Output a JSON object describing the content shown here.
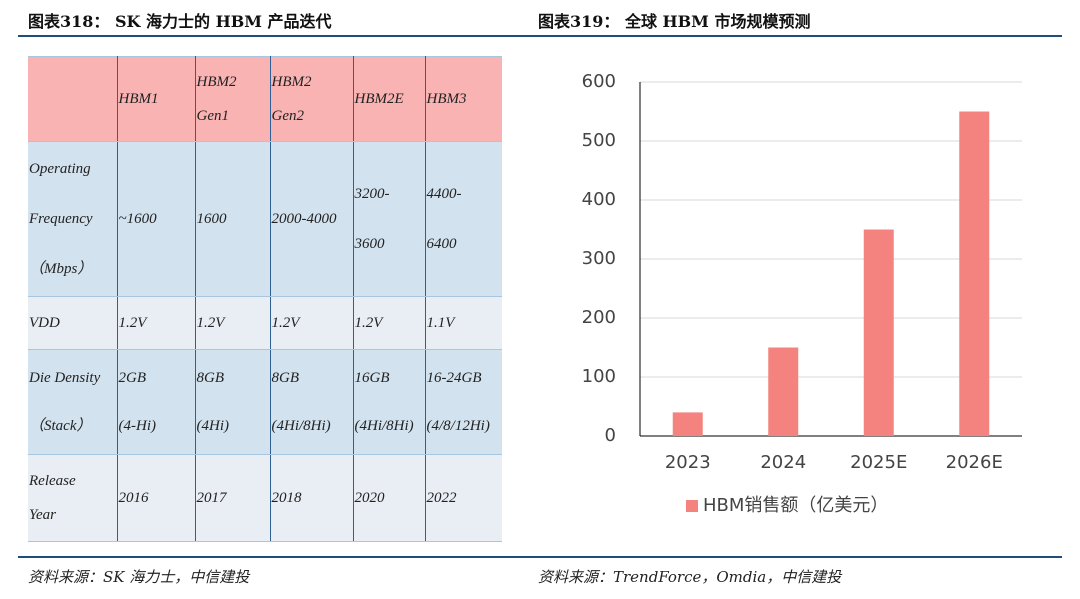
{
  "figures": [
    {
      "title": "图表318： SK 海力士的 HBM 产品迭代",
      "source": "资料来源：SK 海力士，中信建投"
    },
    {
      "title": "图表319： 全球 HBM 市场规模预测",
      "source": "资料来源：TrendForce，Omdia，中信建投"
    }
  ],
  "table": {
    "header": [
      null,
      "HBM1",
      "HBM2\nGen1",
      "HBM2\nGen2",
      "HBM2E",
      "HBM3"
    ],
    "rows": [
      [
        "Operating\nFrequency\n（Mbps）",
        "~1600",
        "1600",
        "2000-4000",
        "3200-\n3600",
        "4400-\n6400"
      ],
      [
        "VDD",
        "1.2V",
        "1.2V",
        "1.2V",
        "1.2V",
        "1.1V"
      ],
      [
        "Die Density\n（Stack）",
        "2GB\n(4-Hi)",
        "8GB\n(4Hi)",
        "8GB\n(4Hi/8Hi)",
        "16GB\n(4Hi/8Hi)",
        "16-24GB\n(4/8/12Hi)"
      ],
      [
        "Release\nYear",
        "2016",
        "2017",
        "2018",
        "2020",
        "2022"
      ]
    ]
  },
  "chart_data": {
    "type": "bar",
    "categories": [
      "2023",
      "2024",
      "2025E",
      "2026E"
    ],
    "series": [
      {
        "name": "HBM销售额（亿美元）",
        "color": "#f4837f",
        "values": [
          40,
          150,
          350,
          550
        ]
      }
    ],
    "ylim": [
      0,
      600
    ],
    "yticks": [
      0,
      100,
      200,
      300,
      400,
      500,
      600
    ],
    "grid": true,
    "legend": "bottom"
  }
}
